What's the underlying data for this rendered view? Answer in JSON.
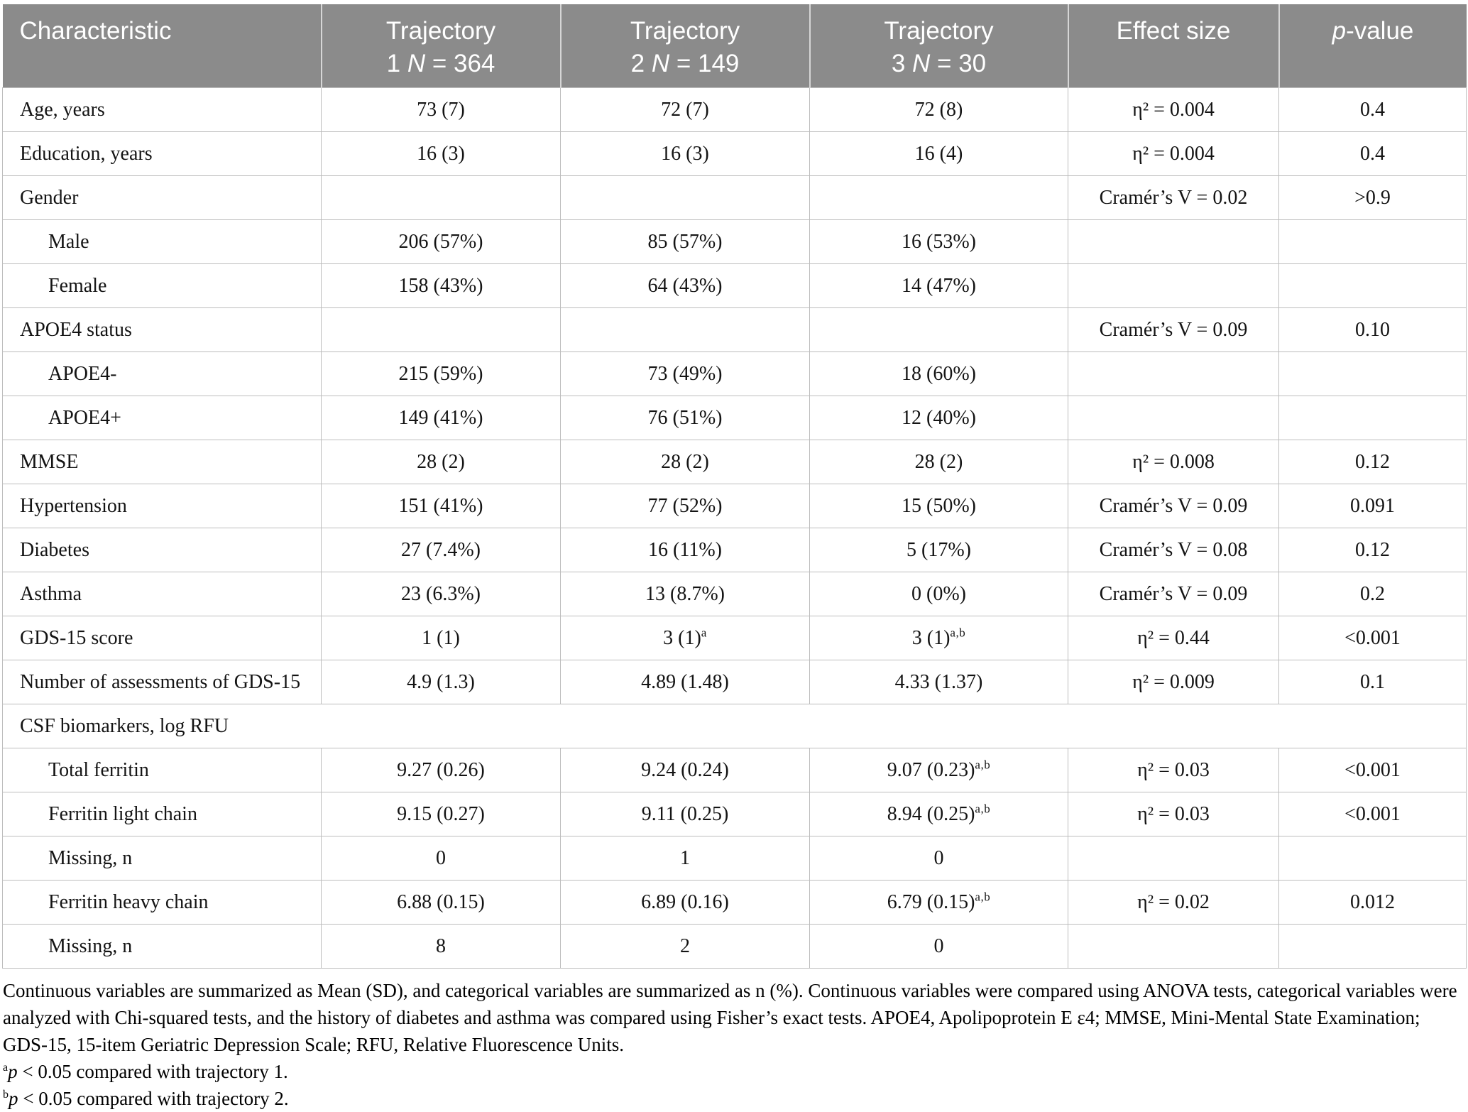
{
  "colors": {
    "header_bg": "#8b8b8b",
    "header_text": "#ffffff",
    "grid_line": "#bdbdbd"
  },
  "header": {
    "characteristic": "Characteristic",
    "t1_line1": "Trajectory",
    "t1_pre": "1 ",
    "t1_n": "N",
    "t1_post": " = 364",
    "t2_line1": "Trajectory",
    "t2_pre": "2 ",
    "t2_n": "N",
    "t2_post": " = 149",
    "t3_line1": "Trajectory",
    "t3_pre": "3 ",
    "t3_n": "N",
    "t3_post": " = 30",
    "effect": "Effect size",
    "p_italic": "p",
    "p_rest": "-value"
  },
  "table": {
    "rows": [
      {
        "label": "Age, years",
        "indent": false,
        "values": [
          "73 (7)",
          "72 (7)",
          "72 (8)"
        ],
        "sups": [
          "",
          "",
          ""
        ],
        "effect": "η² = 0.004",
        "p": "0.4"
      },
      {
        "label": "Education, years",
        "indent": false,
        "values": [
          "16 (3)",
          "16 (3)",
          "16 (4)"
        ],
        "sups": [
          "",
          "",
          ""
        ],
        "effect": "η² = 0.004",
        "p": "0.4"
      },
      {
        "label": "Gender",
        "indent": false,
        "values": [
          "",
          "",
          ""
        ],
        "sups": [
          "",
          "",
          ""
        ],
        "effect": "Cramér’s V = 0.02",
        "p": ">0.9"
      },
      {
        "label": "Male",
        "indent": true,
        "values": [
          "206 (57%)",
          "85 (57%)",
          "16 (53%)"
        ],
        "sups": [
          "",
          "",
          ""
        ],
        "effect": "",
        "p": ""
      },
      {
        "label": "Female",
        "indent": true,
        "values": [
          "158 (43%)",
          "64 (43%)",
          "14 (47%)"
        ],
        "sups": [
          "",
          "",
          ""
        ],
        "effect": "",
        "p": ""
      },
      {
        "label": "APOE4 status",
        "indent": false,
        "values": [
          "",
          "",
          ""
        ],
        "sups": [
          "",
          "",
          ""
        ],
        "effect": "Cramér’s V = 0.09",
        "p": "0.10"
      },
      {
        "label": "APOE4-",
        "indent": true,
        "values": [
          "215 (59%)",
          "73 (49%)",
          "18 (60%)"
        ],
        "sups": [
          "",
          "",
          ""
        ],
        "effect": "",
        "p": ""
      },
      {
        "label": "APOE4+",
        "indent": true,
        "values": [
          "149 (41%)",
          "76 (51%)",
          "12 (40%)"
        ],
        "sups": [
          "",
          "",
          ""
        ],
        "effect": "",
        "p": ""
      },
      {
        "label": "MMSE",
        "indent": false,
        "values": [
          "28 (2)",
          "28 (2)",
          "28 (2)"
        ],
        "sups": [
          "",
          "",
          ""
        ],
        "effect": "η² = 0.008",
        "p": "0.12"
      },
      {
        "label": "Hypertension",
        "indent": false,
        "values": [
          "151 (41%)",
          "77 (52%)",
          "15 (50%)"
        ],
        "sups": [
          "",
          "",
          ""
        ],
        "effect": "Cramér’s V = 0.09",
        "p": "0.091"
      },
      {
        "label": "Diabetes",
        "indent": false,
        "values": [
          "27 (7.4%)",
          "16 (11%)",
          "5 (17%)"
        ],
        "sups": [
          "",
          "",
          ""
        ],
        "effect": "Cramér’s V = 0.08",
        "p": "0.12"
      },
      {
        "label": "Asthma",
        "indent": false,
        "values": [
          "23 (6.3%)",
          "13 (8.7%)",
          "0 (0%)"
        ],
        "sups": [
          "",
          "",
          ""
        ],
        "effect": "Cramér’s V = 0.09",
        "p": "0.2"
      },
      {
        "label": "GDS-15 score",
        "indent": false,
        "values": [
          "1 (1)",
          "3 (1)",
          "3 (1)"
        ],
        "sups": [
          "",
          "a",
          "a,b"
        ],
        "effect": "η² = 0.44",
        "p": "<0.001"
      },
      {
        "label": "Number of assessments of GDS-15",
        "indent": false,
        "values": [
          "4.9 (1.3)",
          "4.89 (1.48)",
          "4.33 (1.37)"
        ],
        "sups": [
          "",
          "",
          ""
        ],
        "effect": "η² = 0.009",
        "p": "0.1"
      },
      {
        "label": "CSF biomarkers, log RFU",
        "span": true
      },
      {
        "label": "Total ferritin",
        "indent": true,
        "values": [
          "9.27 (0.26)",
          "9.24 (0.24)",
          "9.07 (0.23)"
        ],
        "sups": [
          "",
          "",
          "a,b"
        ],
        "effect": "η² = 0.03",
        "p": "<0.001"
      },
      {
        "label": "Ferritin light chain",
        "indent": true,
        "values": [
          "9.15 (0.27)",
          "9.11 (0.25)",
          "8.94 (0.25)"
        ],
        "sups": [
          "",
          "",
          "a,b"
        ],
        "effect": "η² = 0.03",
        "p": "<0.001"
      },
      {
        "label": "Missing, n",
        "indent": true,
        "values": [
          "0",
          "1",
          "0"
        ],
        "sups": [
          "",
          "",
          ""
        ],
        "effect": "",
        "p": ""
      },
      {
        "label": "Ferritin heavy chain",
        "indent": true,
        "values": [
          "6.88 (0.15)",
          "6.89 (0.16)",
          "6.79 (0.15)"
        ],
        "sups": [
          "",
          "",
          "a,b"
        ],
        "effect": "η² = 0.02",
        "p": "0.012"
      },
      {
        "label": "Missing, n",
        "indent": true,
        "values": [
          "8",
          "2",
          "0"
        ],
        "sups": [
          "",
          "",
          ""
        ],
        "effect": "",
        "p": ""
      }
    ]
  },
  "footnotes": {
    "general": "Continuous variables are summarized as Mean (SD), and categorical variables are summarized as n (%). Continuous variables were compared using ANOVA tests, categorical variables were analyzed with Chi-squared tests, and the history of diabetes and asthma was compared using Fisher’s exact tests. APOE4, Apolipoprotein E ε4; MMSE, Mini-Mental State Examination; GDS-15, 15-item Geriatric Depression Scale; RFU, Relative Fluorescence Units.",
    "a_marker": "a",
    "a_p": "p",
    "a_text": " < 0.05 compared with trajectory 1.",
    "b_marker": "b",
    "b_p": "p",
    "b_text": " < 0.05 compared with trajectory 2."
  }
}
